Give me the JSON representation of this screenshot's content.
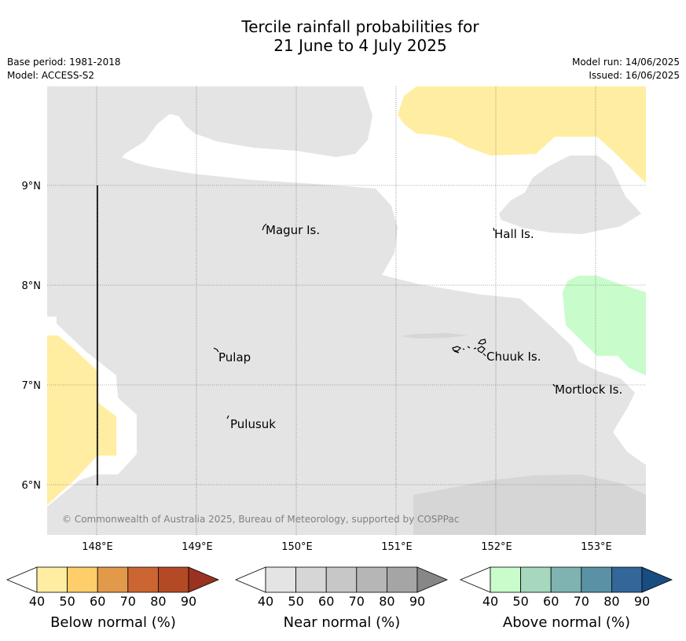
{
  "title": {
    "line1": "Tercile rainfall probabilities for",
    "line2": "21 June to 4 July 2025"
  },
  "meta": {
    "base_period": "Base period: 1981-2018",
    "model": "Model: ACCESS-S2",
    "model_run": "Model run: 14/06/2025",
    "issued": "Issued: 16/06/2025"
  },
  "map": {
    "lat_labels": [
      "9°N",
      "8°N",
      "7°N",
      "6°N"
    ],
    "lon_labels": [
      "148°E",
      "149°E",
      "150°E",
      "151°E",
      "152°E",
      "153°E"
    ],
    "places": [
      "Magur Is.",
      "Hall Is.",
      "Pulap",
      "Chuuk Is.",
      "Mortlock Is.",
      "Pulusuk"
    ],
    "copyright": "© Commonwealth of Australia 2025, Bureau of Meteorology, supported by COSPPac"
  },
  "legend": {
    "ticks": [
      "40",
      "50",
      "60",
      "70",
      "80",
      "90"
    ],
    "below": {
      "label": "Below normal (%)",
      "colors": [
        "#ffffff",
        "#ffeea1",
        "#fece6a",
        "#e29949",
        "#cb6532",
        "#b34a25",
        "#993220"
      ]
    },
    "near": {
      "label": "Near normal (%)",
      "colors": [
        "#ffffff",
        "#e4e4e4",
        "#d6d6d6",
        "#c7c7c7",
        "#b6b6b6",
        "#a5a5a5",
        "#878787"
      ]
    },
    "above": {
      "label": "Above normal (%)",
      "colors": [
        "#ffffff",
        "#c9fccb",
        "#a5d8bd",
        "#7eb3b1",
        "#5a91a4",
        "#336699",
        "#184d82"
      ]
    }
  }
}
